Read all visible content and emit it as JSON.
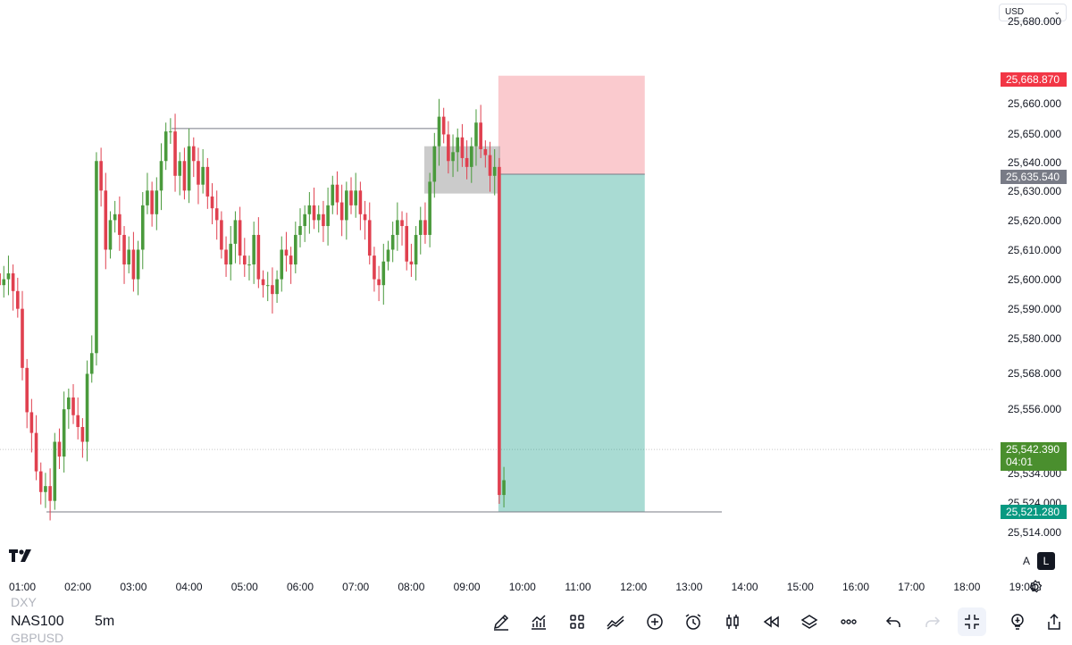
{
  "currency": {
    "value": "USD"
  },
  "price_axis": {
    "labels": [
      "25,680.000",
      "25,660.000",
      "25,650.000",
      "25,640.000",
      "25,630.000",
      "25,620.000",
      "25,610.000",
      "25,600.000",
      "25,590.000",
      "25,580.000",
      "25,568.000",
      "25,556.000",
      "25,534.000",
      "25,524.000",
      "25,514.000"
    ],
    "label_values": [
      25680,
      25660,
      25650,
      25640,
      25630,
      25620,
      25610,
      25600,
      25590,
      25580,
      25568,
      25556,
      25534,
      25524,
      25514
    ]
  },
  "price_tags": {
    "stop_loss": {
      "text": "25,668.870",
      "value": 25668.87,
      "color": "#f23645"
    },
    "entry": {
      "text": "25,635.540",
      "value": 25635.54,
      "color": "#787b86"
    },
    "current": {
      "text": "25,542.390",
      "countdown": "04:01",
      "value": 25542.39,
      "color": "#089981"
    },
    "target": {
      "text": "25,521.280",
      "value": 25521.28,
      "color": "#089981"
    }
  },
  "time_axis": {
    "labels": [
      "01:00",
      "02:00",
      "03:00",
      "04:00",
      "05:00",
      "06:00",
      "07:00",
      "08:00",
      "09:00",
      "10:00",
      "11:00",
      "12:00",
      "13:00",
      "14:00",
      "15:00",
      "16:00",
      "17:00",
      "18:00",
      "19:00"
    ]
  },
  "chart_data": {
    "type": "candlestick",
    "symbol": "NAS100",
    "interval": "5m",
    "x": [
      "00:35",
      "00:40",
      "00:45",
      "00:50",
      "00:55",
      "01:00",
      "01:05",
      "01:10",
      "01:15",
      "01:20",
      "01:25",
      "01:30",
      "01:35",
      "01:40",
      "01:45",
      "01:50",
      "01:55",
      "02:00",
      "02:05",
      "02:10",
      "02:15",
      "02:20",
      "02:25",
      "02:30",
      "02:35",
      "02:40",
      "02:45",
      "02:50",
      "02:55",
      "03:00",
      "03:05",
      "03:10",
      "03:15",
      "03:20",
      "03:25",
      "03:30",
      "03:35",
      "03:40",
      "03:45",
      "03:50",
      "03:55",
      "04:00",
      "04:05",
      "04:10",
      "04:15",
      "04:20",
      "04:25",
      "04:30",
      "04:35",
      "04:40",
      "04:45",
      "04:50",
      "04:55",
      "05:00",
      "05:05",
      "05:10",
      "05:15",
      "05:20",
      "05:25",
      "05:30",
      "05:35",
      "05:40",
      "05:45",
      "05:50",
      "05:55",
      "06:00",
      "06:05",
      "06:10",
      "06:15",
      "06:20",
      "06:25",
      "06:30",
      "06:35",
      "06:40",
      "06:45",
      "06:50",
      "06:55",
      "07:00",
      "07:05",
      "07:10",
      "07:15",
      "07:20",
      "07:25",
      "07:30",
      "07:35",
      "07:40",
      "07:45",
      "07:50",
      "07:55",
      "08:00",
      "08:05",
      "08:10",
      "08:15",
      "08:20",
      "08:25",
      "08:30",
      "08:35",
      "08:40",
      "08:45",
      "08:50",
      "08:55",
      "09:00",
      "09:05",
      "09:10",
      "09:15",
      "09:20",
      "09:25",
      "09:30",
      "09:35",
      "09:40"
    ],
    "close": [
      25598,
      25600,
      25602,
      25596,
      25590,
      25570,
      25555,
      25548,
      25535,
      25528,
      25530,
      25525,
      25545,
      25540,
      25556,
      25560,
      25554,
      25550,
      25545,
      25568,
      25575,
      25640,
      25630,
      25610,
      25620,
      25622,
      25615,
      25605,
      25610,
      25600,
      25610,
      25625,
      25630,
      25622,
      25630,
      25640,
      25650,
      25650,
      25635,
      25640,
      25630,
      25645,
      25640,
      25632,
      25638,
      25628,
      25624,
      25620,
      25610,
      25605,
      25612,
      25620,
      25608,
      25605,
      25605,
      25615,
      25600,
      25598,
      25598,
      25595,
      25600,
      25610,
      25608,
      25605,
      25615,
      25618,
      25622,
      25625,
      25620,
      25622,
      25618,
      25625,
      25632,
      25626,
      25620,
      25630,
      25625,
      25630,
      25622,
      25620,
      25608,
      25600,
      25598,
      25606,
      25610,
      25615,
      25620,
      25618,
      25606,
      25605,
      25615,
      25620,
      25615,
      25633,
      25645,
      25655,
      25649,
      25640,
      25643,
      25648,
      25641,
      25638,
      25645,
      25653,
      25644,
      25642,
      25635,
      25638,
      25527,
      25532
    ],
    "price_range": [
      25510,
      25688
    ],
    "horizontal_levels": [
      25651,
      25521.28
    ],
    "position": {
      "type": "short",
      "entry": 25635.54,
      "stop_loss": 25668.87,
      "target": 25521.28,
      "start": "09:35",
      "end": "12:15"
    }
  }
}
